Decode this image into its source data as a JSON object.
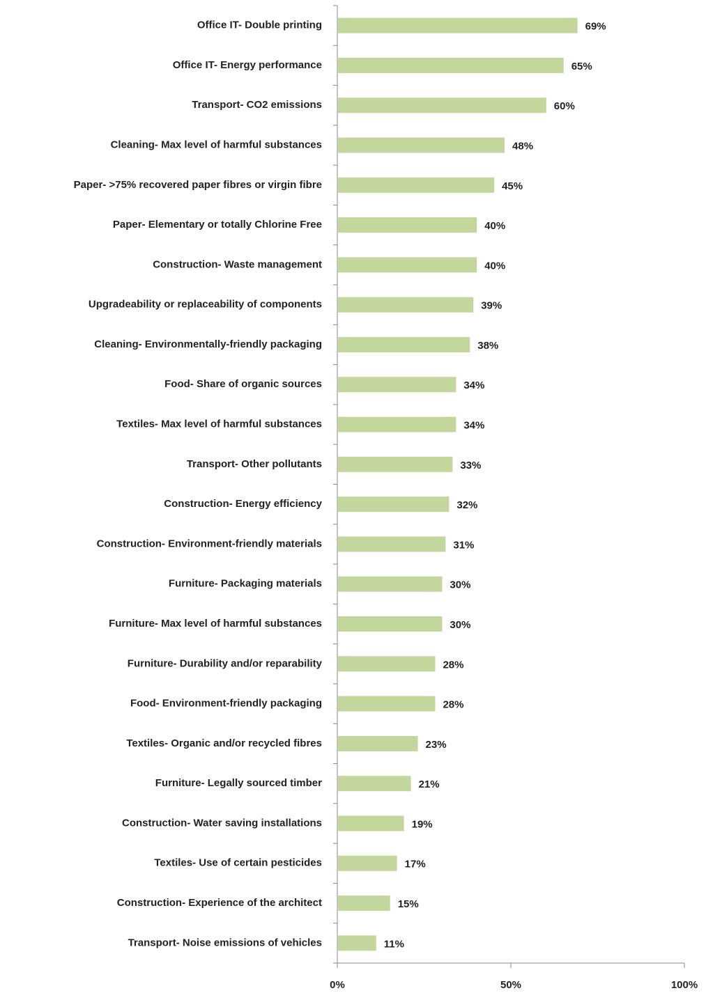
{
  "chart_data": {
    "type": "barh",
    "categories": [
      "Office IT- Double printing",
      "Office IT- Energy performance",
      "Transport- CO2 emissions",
      "Cleaning- Max level of harmful substances",
      "Paper- >75% recovered paper fibres or virgin fibre",
      "Paper- Elementary or totally Chlorine Free",
      "Construction- Waste management",
      "Upgradeability or replaceability of components",
      "Cleaning- Environmentally-friendly packaging",
      "Food- Share of organic sources",
      "Textiles- Max level of harmful substances",
      "Transport- Other pollutants",
      "Construction- Energy efficiency",
      "Construction- Environment-friendly materials",
      "Furniture- Packaging materials",
      "Furniture- Max level of harmful substances",
      "Furniture- Durability and/or reparability",
      "Food- Environment-friendly packaging",
      "Textiles- Organic and/or recycled fibres",
      "Furniture- Legally sourced timber",
      "Construction- Water saving installations",
      "Textiles- Use of certain pesticides",
      "Construction- Experience of the architect",
      "Transport- Noise emissions of vehicles"
    ],
    "values": [
      69,
      65,
      60,
      48,
      45,
      40,
      40,
      39,
      38,
      34,
      34,
      33,
      32,
      31,
      30,
      30,
      28,
      28,
      23,
      21,
      19,
      17,
      15,
      11
    ],
    "value_labels": [
      "69%",
      "65%",
      "60%",
      "48%",
      "45%",
      "40%",
      "40%",
      "39%",
      "38%",
      "34%",
      "34%",
      "33%",
      "32%",
      "31%",
      "30%",
      "30%",
      "28%",
      "28%",
      "23%",
      "21%",
      "19%",
      "17%",
      "15%",
      "11%"
    ],
    "color": "#c3d69b",
    "xlim": [
      0,
      100
    ],
    "xticks": [
      {
        "value": 0,
        "label": "0%"
      },
      {
        "value": 50,
        "label": "50%"
      },
      {
        "value": 100,
        "label": "100%"
      }
    ],
    "grid": false
  }
}
